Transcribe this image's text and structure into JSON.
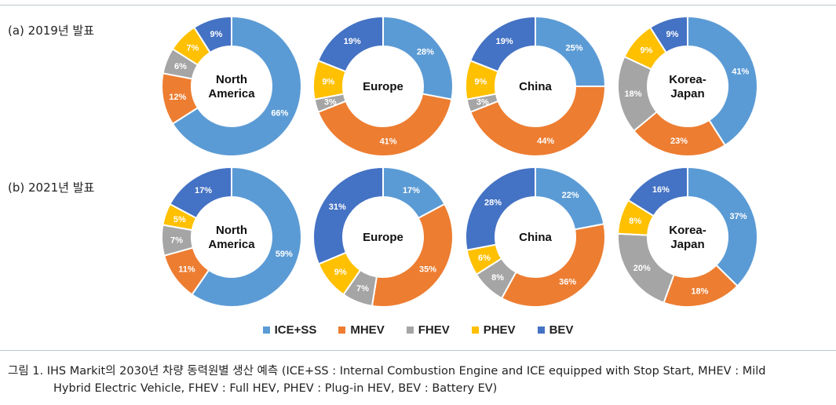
{
  "rows": [
    {
      "label": "(a) 2019년 발표"
    },
    {
      "label": "(b) 2021년 발표"
    }
  ],
  "legend": [
    {
      "name": "ICE+SS",
      "color": "#5b9bd5"
    },
    {
      "name": "MHEV",
      "color": "#ed7d31"
    },
    {
      "name": "FHEV",
      "color": "#a5a5a5"
    },
    {
      "name": "PHEV",
      "color": "#ffc000"
    },
    {
      "name": "BEV",
      "color": "#4472c4"
    }
  ],
  "caption": {
    "line1": "그림 1. IHS Markit의 2030년 차량 동력원별 생산 예측 (ICE+SS : Internal Combustion Engine and ICE equipped with Stop Start, MHEV : Mild",
    "line2": "Hybrid Electric Vehicle, FHEV : Full HEV, PHEV : Plug-in HEV, BEV : Battery EV)"
  },
  "chart_data": [
    {
      "type": "pie",
      "group": "(a) 2019년 발표",
      "center_label": [
        "North",
        "America"
      ],
      "categories": [
        "ICE+SS",
        "MHEV",
        "FHEV",
        "PHEV",
        "BEV"
      ],
      "values": [
        66,
        12,
        6,
        7,
        9
      ],
      "labels": [
        "66%",
        "12%",
        "6%",
        "7%",
        "9%"
      ]
    },
    {
      "type": "pie",
      "group": "(a) 2019년 발표",
      "center_label": [
        "Europe"
      ],
      "categories": [
        "ICE+SS",
        "MHEV",
        "FHEV",
        "PHEV",
        "BEV"
      ],
      "values": [
        28,
        41,
        3,
        9,
        19
      ],
      "labels": [
        "28%",
        "41%",
        "3%",
        "9%",
        "19%"
      ]
    },
    {
      "type": "pie",
      "group": "(a) 2019년 발표",
      "center_label": [
        "China"
      ],
      "categories": [
        "ICE+SS",
        "MHEV",
        "FHEV",
        "PHEV",
        "BEV"
      ],
      "values": [
        25,
        44,
        3,
        9,
        19
      ],
      "labels": [
        "25%",
        "44%",
        "3%",
        "9%",
        "19%"
      ]
    },
    {
      "type": "pie",
      "group": "(a) 2019년 발표",
      "center_label": [
        "Korea-",
        "Japan"
      ],
      "categories": [
        "ICE+SS",
        "MHEV",
        "FHEV",
        "PHEV",
        "BEV"
      ],
      "values": [
        41,
        23,
        18,
        9,
        9
      ],
      "labels": [
        "41%",
        "23%",
        "18%",
        "9%",
        "9%"
      ]
    },
    {
      "type": "pie",
      "group": "(b) 2021년 발표",
      "center_label": [
        "North",
        "America"
      ],
      "categories": [
        "ICE+SS",
        "MHEV",
        "FHEV",
        "PHEV",
        "BEV"
      ],
      "values": [
        59,
        11,
        7,
        5,
        17
      ],
      "labels": [
        "59%",
        "11%",
        "7%",
        "5%",
        "17%"
      ]
    },
    {
      "type": "pie",
      "group": "(b) 2021년 발표",
      "center_label": [
        "Europe"
      ],
      "categories": [
        "ICE+SS",
        "MHEV",
        "FHEV",
        "PHEV",
        "BEV"
      ],
      "values": [
        17,
        35,
        7,
        9,
        31
      ],
      "labels": [
        "17%",
        "35%",
        "7%",
        "9%",
        "31%"
      ]
    },
    {
      "type": "pie",
      "group": "(b) 2021년 발표",
      "center_label": [
        "China"
      ],
      "categories": [
        "ICE+SS",
        "MHEV",
        "FHEV",
        "PHEV",
        "BEV"
      ],
      "values": [
        22,
        36,
        8,
        6,
        28
      ],
      "labels": [
        "22%",
        "36%",
        "8%",
        "6%",
        "28%"
      ]
    },
    {
      "type": "pie",
      "group": "(b) 2021년 발표",
      "center_label": [
        "Korea-",
        "Japan"
      ],
      "categories": [
        "ICE+SS",
        "MHEV",
        "FHEV",
        "PHEV",
        "BEV"
      ],
      "values": [
        37,
        18,
        20,
        8,
        16
      ],
      "labels": [
        "37%",
        "18%",
        "20%",
        "8%",
        "16%"
      ]
    }
  ]
}
